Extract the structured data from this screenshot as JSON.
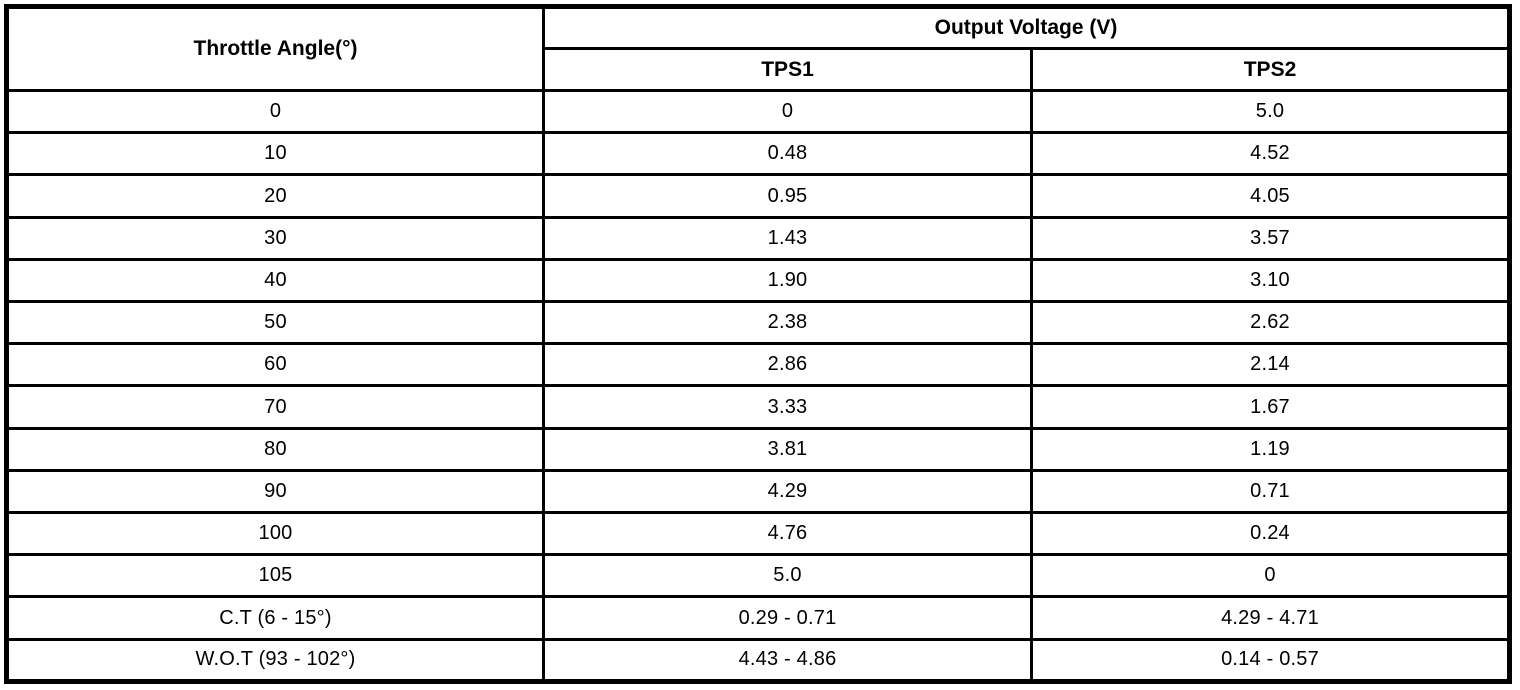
{
  "table": {
    "header": {
      "throttle_angle": "Throttle Angle(°)",
      "output_voltage": "Output Voltage (V)",
      "tps1": "TPS1",
      "tps2": "TPS2"
    },
    "rows": [
      {
        "angle": "0",
        "tps1": "0",
        "tps2": "5.0"
      },
      {
        "angle": "10",
        "tps1": "0.48",
        "tps2": "4.52"
      },
      {
        "angle": "20",
        "tps1": "0.95",
        "tps2": "4.05"
      },
      {
        "angle": "30",
        "tps1": "1.43",
        "tps2": "3.57"
      },
      {
        "angle": "40",
        "tps1": "1.90",
        "tps2": "3.10"
      },
      {
        "angle": "50",
        "tps1": "2.38",
        "tps2": "2.62"
      },
      {
        "angle": "60",
        "tps1": "2.86",
        "tps2": "2.14"
      },
      {
        "angle": "70",
        "tps1": "3.33",
        "tps2": "1.67"
      },
      {
        "angle": "80",
        "tps1": "3.81",
        "tps2": "1.19"
      },
      {
        "angle": "90",
        "tps1": "4.29",
        "tps2": "0.71"
      },
      {
        "angle": "100",
        "tps1": "4.76",
        "tps2": "0.24"
      },
      {
        "angle": "105",
        "tps1": "5.0",
        "tps2": "0"
      },
      {
        "angle": "C.T (6 - 15°)",
        "tps1": "0.29 - 0.71",
        "tps2": "4.29 - 4.71"
      },
      {
        "angle": "W.O.T (93 - 102°)",
        "tps1": "4.43 - 4.86",
        "tps2": "0.14 - 0.57"
      }
    ]
  },
  "chart_data": {
    "type": "table",
    "title": "Output Voltage (V)",
    "columns": [
      "Throttle Angle(°)",
      "TPS1",
      "TPS2"
    ],
    "x": [
      0,
      10,
      20,
      30,
      40,
      50,
      60,
      70,
      80,
      90,
      100,
      105
    ],
    "series": [
      {
        "name": "TPS1",
        "values": [
          0,
          0.48,
          0.95,
          1.43,
          1.9,
          2.38,
          2.86,
          3.33,
          3.81,
          4.29,
          4.76,
          5.0
        ]
      },
      {
        "name": "TPS2",
        "values": [
          5.0,
          4.52,
          4.05,
          3.57,
          3.1,
          2.62,
          2.14,
          1.67,
          1.19,
          0.71,
          0.24,
          0
        ]
      }
    ],
    "special_rows": [
      {
        "label": "C.T (6 - 15°)",
        "tps1_range": "0.29 - 0.71",
        "tps2_range": "4.29 - 4.71"
      },
      {
        "label": "W.O.T (93 - 102°)",
        "tps1_range": "4.43 - 4.86",
        "tps2_range": "0.14 - 0.57"
      }
    ]
  }
}
